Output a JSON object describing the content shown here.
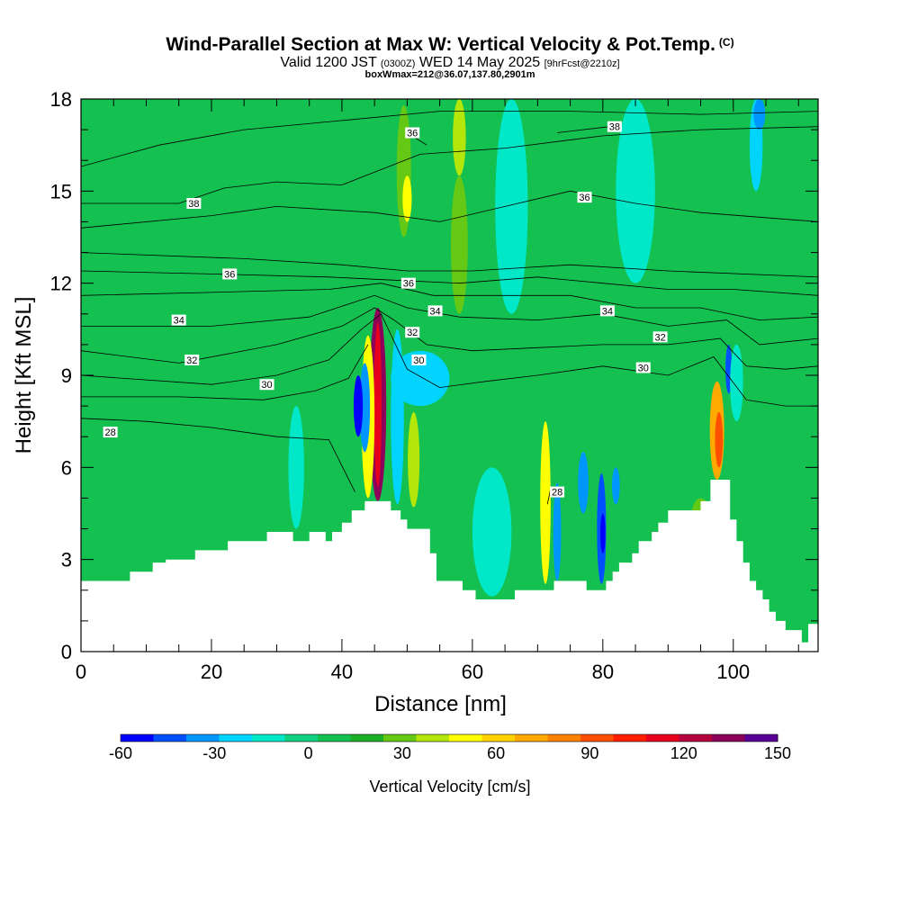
{
  "chart_data": {
    "type": "heatmap",
    "title": "Wind-Parallel Section at Max W: Vertical Velocity & Pot.Temp.",
    "copyright_mark": "(C)",
    "subtitle_main": "Valid 1200 JST",
    "subtitle_utc": "(0300Z)",
    "subtitle_date": "WED 14 May 2025",
    "subtitle_fcst": "[9hrFcst@2210z]",
    "subtitle2": "boxWmax=212@36.07,137.80,2901m",
    "xlabel": "Distance [nm]",
    "ylabel": "Height [Kft MSL]",
    "xlim": [
      0,
      113
    ],
    "ylim": [
      0,
      18
    ],
    "x_ticks": [
      "0",
      "20",
      "40",
      "60",
      "80",
      "100"
    ],
    "y_ticks": [
      "0",
      "3",
      "6",
      "9",
      "12",
      "15",
      "18"
    ],
    "colorbar": {
      "title": "Vertical Velocity [cm/s]",
      "min": -60,
      "max": 150,
      "tick_labels": [
        "-60",
        "-30",
        "0",
        "30",
        "60",
        "90",
        "120",
        "150"
      ],
      "colors": [
        "#0000ff",
        "#0050ff",
        "#0096ff",
        "#00d4ff",
        "#00e8c8",
        "#10d080",
        "#14c050",
        "#1cb028",
        "#64c814",
        "#b4e60a",
        "#ffff00",
        "#ffd200",
        "#ffaa00",
        "#ff8200",
        "#ff5000",
        "#ff1e00",
        "#e6001e",
        "#b4003c",
        "#8c005a",
        "#5a0096"
      ]
    },
    "background_w": 5,
    "w_features": [
      {
        "x": 45.5,
        "y0": 4.9,
        "y1": 11.2,
        "halfwidth": 1.3,
        "w": 135
      },
      {
        "x": 44.0,
        "y0": 5.0,
        "y1": 10.3,
        "halfwidth": 1.0,
        "w": 55
      },
      {
        "x": 43.5,
        "y0": 6.5,
        "y1": 9.4,
        "halfwidth": 0.8,
        "w": -35
      },
      {
        "x": 42.5,
        "y0": 7.0,
        "y1": 9.0,
        "halfwidth": 0.7,
        "w": -50
      },
      {
        "x": 48.5,
        "y0": 4.8,
        "y1": 10.5,
        "halfwidth": 1.0,
        "w": -25
      },
      {
        "x": 52.0,
        "y0": 8.0,
        "y1": 9.8,
        "halfwidth": 4.5,
        "w": -20
      },
      {
        "x": 51.0,
        "y0": 4.7,
        "y1": 7.8,
        "halfwidth": 0.9,
        "w": 40
      },
      {
        "x": 49.5,
        "y0": 13.5,
        "y1": 17.8,
        "halfwidth": 1.1,
        "w": 25
      },
      {
        "x": 50.0,
        "y0": 14.0,
        "y1": 15.5,
        "halfwidth": 0.7,
        "w": 45
      },
      {
        "x": 58.0,
        "y0": 15.5,
        "y1": 18.0,
        "halfwidth": 1.0,
        "w": 35
      },
      {
        "x": 58.0,
        "y0": 11.0,
        "y1": 15.5,
        "halfwidth": 1.3,
        "w": 25
      },
      {
        "x": 71.2,
        "y0": 2.2,
        "y1": 7.5,
        "halfwidth": 0.8,
        "w": 48
      },
      {
        "x": 73.0,
        "y0": 2.3,
        "y1": 5.5,
        "halfwidth": 0.6,
        "w": -35
      },
      {
        "x": 79.8,
        "y0": 2.2,
        "y1": 5.8,
        "halfwidth": 0.7,
        "w": -45
      },
      {
        "x": 80.0,
        "y0": 3.2,
        "y1": 4.5,
        "halfwidth": 0.4,
        "w": -60
      },
      {
        "x": 77.0,
        "y0": 4.5,
        "y1": 6.5,
        "halfwidth": 0.8,
        "w": -35
      },
      {
        "x": 82.0,
        "y0": 4.8,
        "y1": 6.0,
        "halfwidth": 0.6,
        "w": -35
      },
      {
        "x": 97.5,
        "y0": 5.6,
        "y1": 8.8,
        "halfwidth": 1.1,
        "w": 70
      },
      {
        "x": 97.8,
        "y0": 6.0,
        "y1": 7.8,
        "halfwidth": 0.6,
        "w": 88
      },
      {
        "x": 99.3,
        "y0": 8.4,
        "y1": 10.0,
        "halfwidth": 0.5,
        "w": -45
      },
      {
        "x": 100.5,
        "y0": 7.5,
        "y1": 10.0,
        "halfwidth": 1.0,
        "w": -15
      },
      {
        "x": 103.5,
        "y0": 15.0,
        "y1": 18.0,
        "halfwidth": 1.0,
        "w": -20
      },
      {
        "x": 104.0,
        "y0": 17.0,
        "y1": 18.0,
        "halfwidth": 0.9,
        "w": -35
      },
      {
        "x": 33.0,
        "y0": 4.0,
        "y1": 8.0,
        "halfwidth": 1.2,
        "w": -12
      },
      {
        "x": 63.0,
        "y0": 1.8,
        "y1": 6.0,
        "halfwidth": 3.0,
        "w": -15
      },
      {
        "x": 85.0,
        "y0": 12.0,
        "y1": 18.0,
        "halfwidth": 3.0,
        "w": -12
      },
      {
        "x": 66.0,
        "y0": 11.0,
        "y1": 18.0,
        "halfwidth": 2.5,
        "w": -12
      },
      {
        "x": 95.0,
        "y0": 3.6,
        "y1": 5.0,
        "halfwidth": 1.5,
        "w": 25
      },
      {
        "x": 25.0,
        "y0": 13.0,
        "y1": 18.0,
        "halfwidth": 8.0,
        "w": 10
      },
      {
        "x": 5.0,
        "y0": 3.0,
        "y1": 12.0,
        "halfwidth": 5.0,
        "w": 10
      }
    ],
    "terrain": [
      [
        0,
        2.3
      ],
      [
        7.5,
        2.3
      ],
      [
        7.5,
        2.6
      ],
      [
        11,
        2.6
      ],
      [
        11,
        2.9
      ],
      [
        13,
        2.9
      ],
      [
        13,
        3.0
      ],
      [
        17.5,
        3.0
      ],
      [
        17.5,
        3.3
      ],
      [
        22.5,
        3.3
      ],
      [
        22.5,
        3.6
      ],
      [
        28.5,
        3.6
      ],
      [
        28.5,
        3.9
      ],
      [
        32.5,
        3.9
      ],
      [
        32.5,
        3.6
      ],
      [
        35,
        3.6
      ],
      [
        35,
        3.9
      ],
      [
        37.5,
        3.9
      ],
      [
        37.5,
        3.6
      ],
      [
        38.5,
        3.6
      ],
      [
        38.5,
        3.9
      ],
      [
        40,
        3.9
      ],
      [
        40,
        4.2
      ],
      [
        41.5,
        4.2
      ],
      [
        41.5,
        4.6
      ],
      [
        43.5,
        4.6
      ],
      [
        43.5,
        4.9
      ],
      [
        47.5,
        4.9
      ],
      [
        47.5,
        4.6
      ],
      [
        49,
        4.6
      ],
      [
        49,
        4.3
      ],
      [
        50,
        4.3
      ],
      [
        50,
        4.0
      ],
      [
        53.5,
        4.0
      ],
      [
        53.5,
        3.2
      ],
      [
        54.5,
        3.2
      ],
      [
        54.5,
        2.3
      ],
      [
        58.5,
        2.3
      ],
      [
        58.5,
        2.0
      ],
      [
        60.5,
        2.0
      ],
      [
        60.5,
        1.7
      ],
      [
        66.5,
        1.7
      ],
      [
        66.5,
        2.0
      ],
      [
        72.5,
        2.0
      ],
      [
        72.5,
        2.3
      ],
      [
        77.5,
        2.3
      ],
      [
        77.5,
        2.0
      ],
      [
        80.5,
        2.0
      ],
      [
        80.5,
        2.3
      ],
      [
        81.5,
        2.3
      ],
      [
        81.5,
        2.6
      ],
      [
        82.5,
        2.6
      ],
      [
        82.5,
        2.9
      ],
      [
        84.5,
        2.9
      ],
      [
        84.5,
        3.2
      ],
      [
        85.5,
        3.2
      ],
      [
        85.5,
        3.6
      ],
      [
        87.5,
        3.6
      ],
      [
        87.5,
        3.9
      ],
      [
        88.5,
        3.9
      ],
      [
        88.5,
        4.2
      ],
      [
        90,
        4.2
      ],
      [
        90,
        4.6
      ],
      [
        95,
        4.6
      ],
      [
        95,
        4.9
      ],
      [
        96.5,
        4.9
      ],
      [
        96.5,
        5.6
      ],
      [
        99.5,
        5.6
      ],
      [
        99.5,
        4.3
      ],
      [
        100.5,
        4.3
      ],
      [
        100.5,
        3.6
      ],
      [
        101.5,
        3.6
      ],
      [
        101.5,
        2.9
      ],
      [
        102.5,
        2.9
      ],
      [
        102.5,
        2.3
      ],
      [
        103.5,
        2.3
      ],
      [
        103.5,
        2.0
      ],
      [
        104.5,
        2.0
      ],
      [
        104.5,
        1.7
      ],
      [
        105.5,
        1.7
      ],
      [
        105.5,
        1.3
      ],
      [
        106.5,
        1.3
      ],
      [
        106.5,
        1.0
      ],
      [
        108,
        1.0
      ],
      [
        108,
        0.7
      ],
      [
        110.5,
        0.7
      ],
      [
        110.5,
        0.3
      ],
      [
        111.5,
        0.3
      ],
      [
        111.5,
        0.9
      ],
      [
        113,
        0.9
      ]
    ],
    "isentropes": [
      {
        "label": "28",
        "points": [
          [
            0,
            7.6
          ],
          [
            10,
            7.5
          ],
          [
            20,
            7.3
          ],
          [
            30,
            7.0
          ],
          [
            38,
            6.9
          ],
          [
            42,
            5.2
          ]
        ]
      },
      {
        "label": "",
        "points": [
          [
            0,
            8.3
          ],
          [
            15,
            8.3
          ],
          [
            28,
            8.2
          ],
          [
            36,
            8.5
          ],
          [
            41,
            8.9
          ],
          [
            44,
            10.0
          ]
        ]
      },
      {
        "label": "30",
        "points": [
          [
            0,
            9.0
          ],
          [
            20,
            8.7
          ],
          [
            30,
            9.0
          ],
          [
            38,
            9.5
          ],
          [
            43,
            10.5
          ],
          [
            46,
            11.0
          ],
          [
            50,
            9.2
          ],
          [
            55,
            8.6
          ],
          [
            62,
            8.8
          ],
          [
            70,
            9.0
          ],
          [
            80,
            9.3
          ],
          [
            90,
            9.0
          ],
          [
            97,
            9.6
          ],
          [
            102,
            8.2
          ],
          [
            108,
            8.0
          ],
          [
            113,
            8.0
          ]
        ]
      },
      {
        "label": "32",
        "points": [
          [
            0,
            9.8
          ],
          [
            15,
            9.4
          ],
          [
            30,
            10.0
          ],
          [
            40,
            10.6
          ],
          [
            45,
            11.2
          ],
          [
            48,
            10.8
          ],
          [
            53,
            10.0
          ],
          [
            60,
            9.8
          ],
          [
            70,
            9.9
          ],
          [
            80,
            10.0
          ],
          [
            90,
            10.0
          ],
          [
            98,
            10.2
          ],
          [
            102,
            9.3
          ],
          [
            108,
            9.2
          ],
          [
            113,
            9.3
          ]
        ]
      },
      {
        "label": "34",
        "points": [
          [
            0,
            10.6
          ],
          [
            20,
            10.6
          ],
          [
            35,
            10.9
          ],
          [
            45,
            11.6
          ],
          [
            50,
            11.2
          ],
          [
            58,
            10.9
          ],
          [
            70,
            10.8
          ],
          [
            80,
            11.0
          ],
          [
            90,
            10.6
          ],
          [
            99,
            10.8
          ],
          [
            104,
            10.0
          ],
          [
            113,
            10.2
          ]
        ]
      },
      {
        "label": "",
        "points": [
          [
            0,
            11.6
          ],
          [
            20,
            11.7
          ],
          [
            38,
            11.8
          ],
          [
            46,
            12.0
          ],
          [
            54,
            11.6
          ],
          [
            62,
            11.6
          ],
          [
            75,
            11.6
          ],
          [
            85,
            11.2
          ],
          [
            95,
            11.2
          ],
          [
            104,
            10.8
          ],
          [
            113,
            10.9
          ]
        ]
      },
      {
        "label": "36",
        "points": [
          [
            0,
            12.4
          ],
          [
            20,
            12.3
          ],
          [
            38,
            12.2
          ],
          [
            48,
            12.1
          ],
          [
            58,
            12.0
          ],
          [
            70,
            12.2
          ],
          [
            80,
            12.0
          ],
          [
            90,
            11.8
          ],
          [
            100,
            11.8
          ],
          [
            113,
            11.6
          ]
        ]
      },
      {
        "label": "",
        "points": [
          [
            0,
            13.0
          ],
          [
            25,
            12.8
          ],
          [
            40,
            12.6
          ],
          [
            50,
            12.4
          ],
          [
            60,
            12.4
          ],
          [
            75,
            12.6
          ],
          [
            90,
            12.4
          ],
          [
            113,
            12.2
          ]
        ]
      },
      {
        "label": "36",
        "points": [
          [
            0,
            13.8
          ],
          [
            20,
            14.2
          ],
          [
            30,
            14.5
          ],
          [
            45,
            14.3
          ],
          [
            55,
            14.0
          ],
          [
            65,
            14.5
          ],
          [
            75,
            15.0
          ],
          [
            85,
            14.6
          ],
          [
            95,
            14.3
          ],
          [
            113,
            14.0
          ]
        ]
      },
      {
        "label": "38",
        "points": [
          [
            0,
            14.6
          ],
          [
            15,
            14.6
          ],
          [
            22,
            15.1
          ],
          [
            30,
            15.3
          ],
          [
            40,
            15.2
          ],
          [
            52,
            16.2
          ],
          [
            65,
            16.4
          ],
          [
            80,
            16.8
          ],
          [
            95,
            17.0
          ],
          [
            113,
            17.1
          ]
        ]
      },
      {
        "label": "",
        "points": [
          [
            0,
            15.8
          ],
          [
            12,
            16.5
          ],
          [
            25,
            17.0
          ],
          [
            40,
            17.3
          ],
          [
            55,
            17.6
          ],
          [
            75,
            17.6
          ],
          [
            95,
            17.5
          ],
          [
            113,
            17.6
          ]
        ]
      },
      {
        "label": "36",
        "points": [
          [
            50,
            16.9
          ],
          [
            53,
            16.5
          ]
        ]
      },
      {
        "label": "38",
        "points": [
          [
            73,
            16.9
          ],
          [
            81,
            17.1
          ]
        ]
      },
      {
        "label": "28",
        "points": [
          [
            71.5,
            4.8
          ],
          [
            72,
            5.3
          ]
        ]
      }
    ],
    "contour_labels": [
      {
        "text": "28",
        "x": 4.5,
        "y": 7.15
      },
      {
        "text": "30",
        "x": 28.5,
        "y": 8.7
      },
      {
        "text": "32",
        "x": 17.0,
        "y": 9.5
      },
      {
        "text": "34",
        "x": 15.0,
        "y": 10.8
      },
      {
        "text": "36",
        "x": 22.8,
        "y": 12.3
      },
      {
        "text": "38",
        "x": 17.3,
        "y": 14.6
      },
      {
        "text": "36",
        "x": 50.8,
        "y": 16.9
      },
      {
        "text": "38",
        "x": 81.8,
        "y": 17.1
      },
      {
        "text": "36",
        "x": 77.2,
        "y": 14.8
      },
      {
        "text": "36",
        "x": 50.2,
        "y": 12.0
      },
      {
        "text": "34",
        "x": 54.3,
        "y": 11.1
      },
      {
        "text": "32",
        "x": 50.8,
        "y": 10.4
      },
      {
        "text": "30",
        "x": 51.8,
        "y": 9.5
      },
      {
        "text": "34",
        "x": 80.7,
        "y": 11.1
      },
      {
        "text": "32",
        "x": 88.8,
        "y": 10.25
      },
      {
        "text": "30",
        "x": 86.2,
        "y": 9.25
      },
      {
        "text": "28",
        "x": 73.0,
        "y": 5.2
      }
    ]
  }
}
